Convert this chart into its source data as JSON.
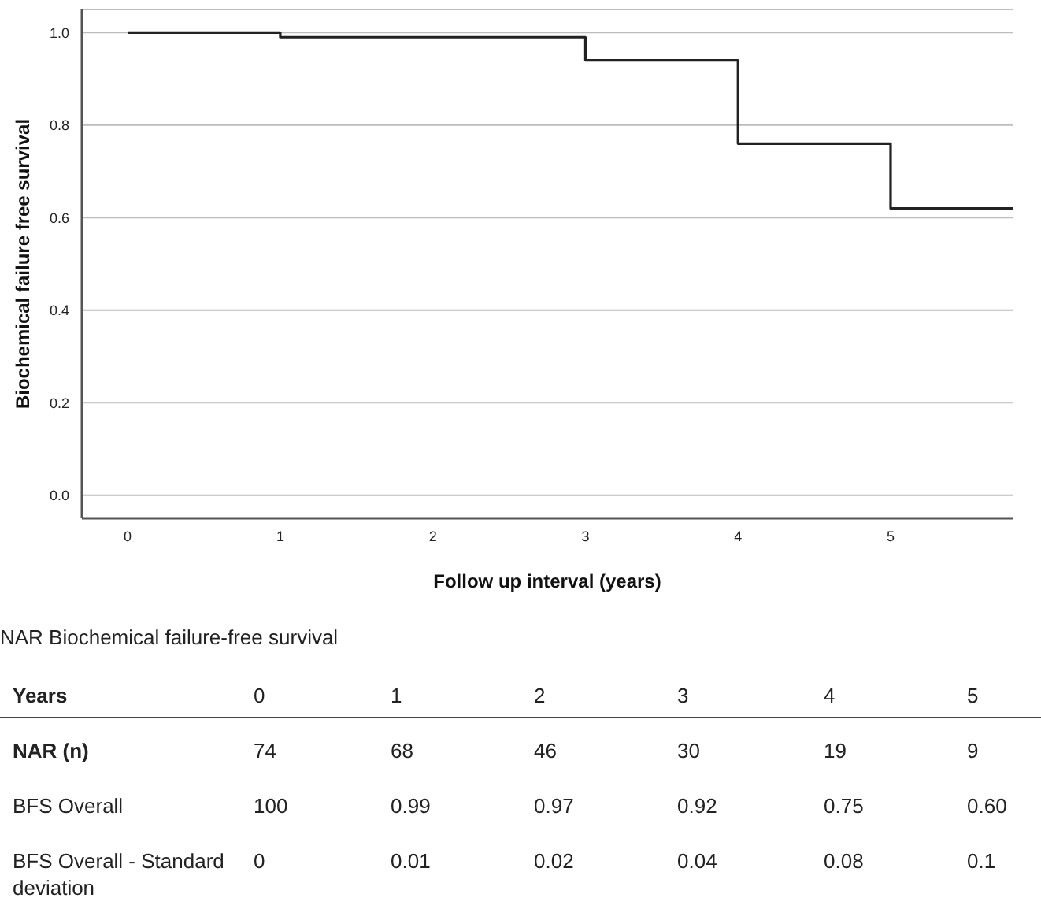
{
  "chart_data": {
    "type": "step",
    "xlabel": "Follow up interval (years)",
    "ylabel": "Biochemical failure free survival",
    "x": [
      0,
      1,
      3,
      4,
      5,
      5.8
    ],
    "series": [
      {
        "color": "#222222",
        "values": [
          1,
          0.99,
          0.94,
          0.76,
          0.62,
          0.62
        ]
      }
    ],
    "xlim": [
      -0.3,
      5.8
    ],
    "xticks": [
      0,
      1,
      2,
      3,
      4,
      5
    ],
    "ylim": [
      -0.05,
      1.05
    ],
    "yticks": [
      {
        "value": 0,
        "label": "0.0"
      },
      0.2,
      0.4,
      0.6,
      0.8,
      {
        "value": 1,
        "label": "1.0"
      }
    ],
    "grid": "y",
    "legend": false,
    "marker": "none",
    "line_style": "solid",
    "annotations": [
      "NAR Biochemical failure-free survival",
      "Years",
      "0",
      "1",
      "2",
      "3",
      "4",
      "5",
      "NAR (n)",
      "74",
      "68",
      "46",
      "30",
      "19",
      "9",
      "BFS Overall",
      "100",
      "0.99",
      "0.97",
      "0.92",
      "0.75",
      "0.60",
      "BFS Overall - Standard deviation",
      "0",
      "0.01",
      "0.02",
      "0.04",
      "0.08",
      "0.1"
    ]
  }
}
